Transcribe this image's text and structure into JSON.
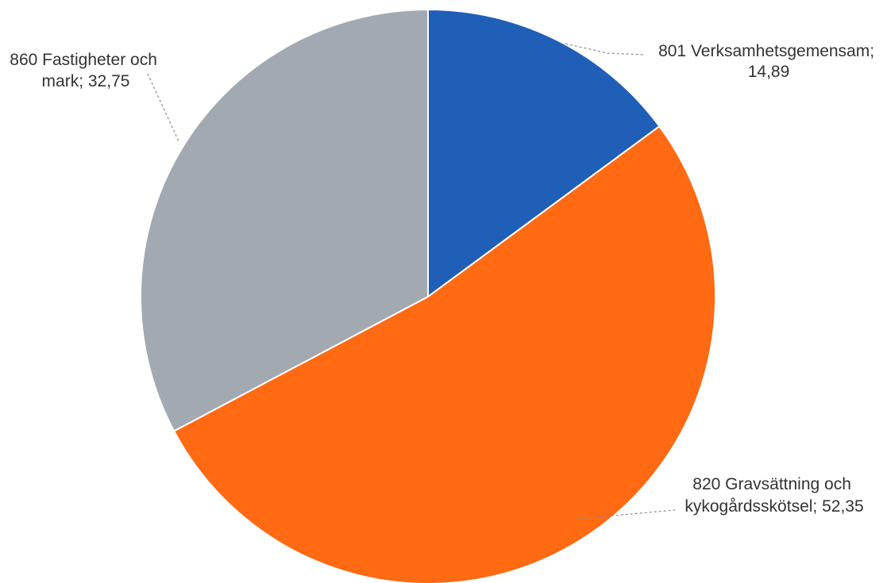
{
  "chart_data": {
    "type": "pie",
    "slices": [
      {
        "category": "801 Verksamhetsgemensam",
        "value": 14.89,
        "label_lines": [
          "801 Verksamhetsgemensam;",
          "14,89"
        ],
        "color": "#1F5FB8"
      },
      {
        "category": "820 Gravsättning och kykogårdsskötsel",
        "value": 52.35,
        "label_lines": [
          "820 Gravsättning och",
          "kykogårdsskötsel; 52,35"
        ],
        "color": "#FF6A13"
      },
      {
        "category": "860 Fastigheter och mark",
        "value": 32.75,
        "label_lines": [
          "860 Fastigheter och",
          "mark; 32,75"
        ],
        "color": "#A2A9B0"
      }
    ],
    "start_angle": "12 o'clock",
    "direction": "clockwise",
    "legend": "none",
    "data_labels": "outside with leader lines"
  }
}
